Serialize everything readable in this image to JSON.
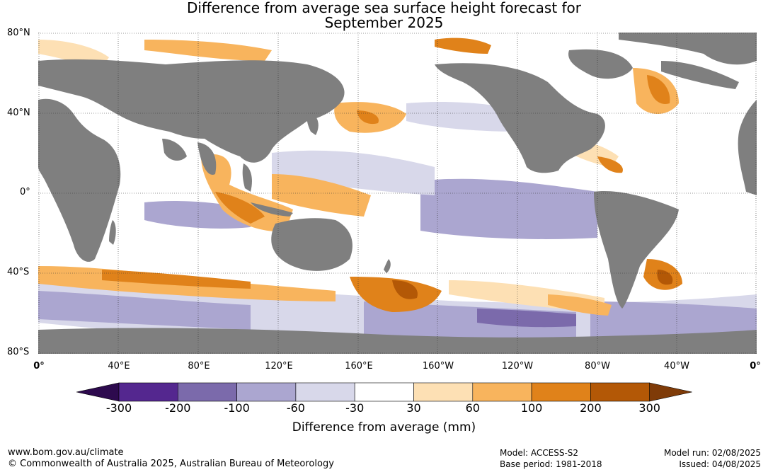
{
  "title": {
    "line1": "Difference from average sea surface height forecast for",
    "line2": "September 2025"
  },
  "latitude_labels": [
    "80°N",
    "40°N",
    "0°",
    "40°S",
    "80°S"
  ],
  "longitude_labels": [
    "0°",
    "40°E",
    "80°E",
    "120°E",
    "160°E",
    "160°W",
    "120°W",
    "80°W",
    "40°W",
    "0°"
  ],
  "colorbar": {
    "label": "Difference from average (mm)",
    "ticks": [
      "-300",
      "-200",
      "-100",
      "-60",
      "-30",
      "30",
      "60",
      "100",
      "200",
      "300"
    ],
    "colors": [
      "#2d0a4e",
      "#54278f",
      "#7b6aab",
      "#aba6d0",
      "#d8d8ea",
      "#ffffff",
      "#fde0b4",
      "#f8b45d",
      "#e0821a",
      "#b35806",
      "#7f3b08"
    ]
  },
  "footer": {
    "url": "www.bom.gov.au/climate",
    "copyright": "© Commonwealth of Australia 2025, Australian Bureau of Meteorology",
    "model": "Model: ACCESS-S2",
    "base_period": "Base period: 1981-2018",
    "model_run": "Model run: 02/08/2025",
    "issued": "Issued: 04/08/2025"
  },
  "colors": {
    "land": "#7f7f7f",
    "ocean": "#ffffff"
  }
}
